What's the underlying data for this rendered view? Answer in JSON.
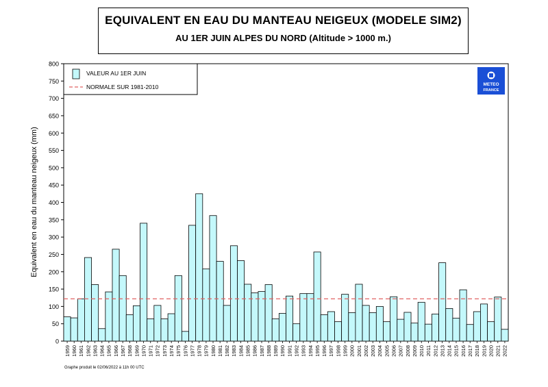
{
  "header": {
    "title": "EQUIVALENT EN EAU DU MANTEAU NEIGEUX (MODELE SIM2)",
    "subtitle": "AU 1ER JUIN ALPES DU NORD (Altitude > 1000 m.)"
  },
  "logo": {
    "line1": "METEO",
    "line2": "FRANCE",
    "color": "#1a4fd6"
  },
  "footnote": "Graphe produit le 02/06/2022 à 11h 00 UTC",
  "chart_data": {
    "type": "bar",
    "ylabel": "Equivalent en eau du manteau neigeux (mm)",
    "xlabel": "",
    "ylim": [
      0,
      800
    ],
    "yticks": [
      0,
      50,
      100,
      150,
      200,
      250,
      300,
      350,
      400,
      450,
      500,
      550,
      600,
      650,
      700,
      750,
      800
    ],
    "grid": false,
    "legend_position": "top-left",
    "bar_color": "#c4f8fb",
    "bar_edge_color": "#000000",
    "normal_line_color": "#e06060",
    "categories": [
      "1959",
      "1960",
      "1961",
      "1962",
      "1963",
      "1964",
      "1965",
      "1966",
      "1967",
      "1968",
      "1969",
      "1970",
      "1971",
      "1972",
      "1973",
      "1974",
      "1975",
      "1976",
      "1977",
      "1978",
      "1979",
      "1980",
      "1981",
      "1982",
      "1983",
      "1984",
      "1985",
      "1986",
      "1987",
      "1988",
      "1989",
      "1990",
      "1991",
      "1992",
      "1993",
      "1994",
      "1995",
      "1996",
      "1997",
      "1998",
      "1999",
      "2000",
      "2001",
      "2002",
      "2003",
      "2004",
      "2005",
      "2006",
      "2007",
      "2008",
      "2009",
      "2010",
      "2011",
      "2012",
      "2013",
      "2014",
      "2015",
      "2016",
      "2017",
      "2018",
      "2019",
      "2020",
      "2021",
      "2022"
    ],
    "series": [
      {
        "name": "VALEUR AU 1ER JUIN",
        "values": [
          70,
          67,
          122,
          241,
          163,
          36,
          142,
          265,
          189,
          76,
          102,
          340,
          64,
          103,
          64,
          79,
          189,
          28,
          334,
          425,
          208,
          362,
          230,
          103,
          275,
          232,
          164,
          139,
          143,
          163,
          64,
          80,
          130,
          50,
          137,
          137,
          257,
          76,
          85,
          56,
          135,
          82,
          164,
          103,
          82,
          100,
          56,
          128,
          63,
          83,
          52,
          112,
          49,
          78,
          226,
          94,
          66,
          148,
          48,
          85,
          107,
          56,
          127,
          34
        ]
      }
    ],
    "reference_lines": [
      {
        "name": "NORMALE SUR 1981-2010",
        "value": 122,
        "style": "dashed"
      }
    ]
  }
}
